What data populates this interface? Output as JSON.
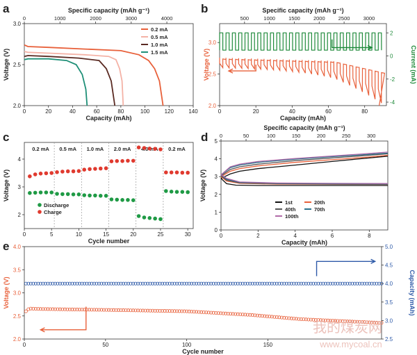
{
  "figure": {
    "panel_letters": [
      "a",
      "b",
      "c",
      "d",
      "e"
    ],
    "watermark": {
      "cn": "我的煤炭网",
      "url": "www.mycoal.cn"
    }
  },
  "chart_data": [
    {
      "panel": "a",
      "type": "line",
      "xlabel": "Capacity (mAh)",
      "ylabel": "Voltage (V)",
      "top_xlabel": "Specific capacity (mAh g⁻¹)",
      "xlim": [
        0,
        140
      ],
      "ylim": [
        2.0,
        3.0
      ],
      "xticks": [
        0,
        20,
        40,
        60,
        80,
        100,
        120,
        140
      ],
      "yticks": [
        2.0,
        2.5,
        3.0
      ],
      "top_xticks": [
        0,
        1000,
        2000,
        3000,
        4000
      ],
      "top_xlim": [
        0,
        4740
      ],
      "legend_position": "top-right",
      "series": [
        {
          "name": "0.2 mA",
          "color": "#e8603a",
          "points": [
            [
              0,
              2.74
            ],
            [
              3,
              2.72
            ],
            [
              20,
              2.71
            ],
            [
              50,
              2.69
            ],
            [
              80,
              2.67
            ],
            [
              95,
              2.62
            ],
            [
              103,
              2.55
            ],
            [
              108,
              2.45
            ],
            [
              112,
              2.3
            ],
            [
              115,
              2.0
            ]
          ]
        },
        {
          "name": "0.5 mA",
          "color": "#f4b2a6",
          "points": [
            [
              0,
              2.66
            ],
            [
              3,
              2.65
            ],
            [
              20,
              2.64
            ],
            [
              50,
              2.62
            ],
            [
              70,
              2.6
            ],
            [
              76,
              2.56
            ],
            [
              79,
              2.45
            ],
            [
              81,
              2.3
            ],
            [
              82,
              2.0
            ]
          ]
        },
        {
          "name": "1.0 mA",
          "color": "#5a2a22",
          "points": [
            [
              0,
              2.6
            ],
            [
              3,
              2.61
            ],
            [
              20,
              2.6
            ],
            [
              45,
              2.58
            ],
            [
              62,
              2.55
            ],
            [
              68,
              2.45
            ],
            [
              72,
              2.3
            ],
            [
              75,
              2.0
            ]
          ]
        },
        {
          "name": "1.5 mA",
          "color": "#1e8f77",
          "points": [
            [
              0,
              2.56
            ],
            [
              3,
              2.57
            ],
            [
              20,
              2.57
            ],
            [
              35,
              2.55
            ],
            [
              43,
              2.5
            ],
            [
              48,
              2.38
            ],
            [
              51,
              2.2
            ],
            [
              52,
              2.0
            ]
          ]
        }
      ]
    },
    {
      "panel": "b",
      "type": "line",
      "xlabel": "Capacity (mAh)",
      "ylabel": "Voltage (V)",
      "y2label": "Current (mA)",
      "top_xlabel": "Specific capacity (mAh g⁻¹)",
      "xlim": [
        0,
        92
      ],
      "ylim": [
        2.0,
        3.3
      ],
      "y2lim": [
        -4.3,
        2.8
      ],
      "xticks": [
        0,
        20,
        40,
        60,
        80
      ],
      "yticks": [
        2.0,
        2.5,
        3.0
      ],
      "y2ticks": [
        -4,
        -2,
        0,
        2
      ],
      "top_xticks": [
        500,
        1000,
        1500,
        2000,
        2500,
        3000
      ],
      "top_xlim": [
        0,
        3350
      ],
      "pulse_period_mAh": 3.5,
      "current_levels_mA": [
        0.5,
        2.0
      ],
      "voltage_series": {
        "color": "#e8603a",
        "start_V": 2.76,
        "end_V": 2.0,
        "end_capacity": 88
      },
      "current_series": {
        "color": "#1f8a3a",
        "end_capacity": 88
      }
    },
    {
      "panel": "c",
      "type": "scatter",
      "xlabel": "Cycle number",
      "ylabel": "Voltage (V)",
      "xlim": [
        0,
        31
      ],
      "ylim": [
        1.5,
        4.6
      ],
      "xticks": [
        0,
        5,
        10,
        15,
        20,
        25,
        30
      ],
      "yticks": [
        2,
        3,
        4
      ],
      "legend_position": "bottom-left",
      "segment_labels": [
        "0.2 mA",
        "0.5 mA",
        "1.0 mA",
        "2.0 mA",
        "4.0 mA",
        "0.2 mA"
      ],
      "segment_boundaries": [
        5.5,
        10.5,
        15.5,
        20.5,
        25.5
      ],
      "series": [
        {
          "name": "Charge",
          "color": "#e03a2f",
          "x": [
            1,
            2,
            3,
            4,
            5,
            6,
            7,
            8,
            9,
            10,
            11,
            12,
            13,
            14,
            15,
            16,
            17,
            18,
            19,
            20,
            21,
            22,
            23,
            24,
            25,
            26,
            27,
            28,
            29,
            30
          ],
          "y": [
            3.38,
            3.45,
            3.48,
            3.49,
            3.5,
            3.53,
            3.55,
            3.56,
            3.56,
            3.57,
            3.62,
            3.64,
            3.65,
            3.66,
            3.67,
            3.92,
            3.93,
            3.93,
            3.94,
            3.94,
            4.42,
            4.4,
            4.38,
            4.37,
            4.35,
            3.52,
            3.52,
            3.52,
            3.51,
            3.51
          ]
        },
        {
          "name": "Discharge",
          "color": "#1f9a45",
          "x": [
            1,
            2,
            3,
            4,
            5,
            6,
            7,
            8,
            9,
            10,
            11,
            12,
            13,
            14,
            15,
            16,
            17,
            18,
            19,
            20,
            21,
            22,
            23,
            24,
            25,
            26,
            27,
            28,
            29,
            30
          ],
          "y": [
            2.78,
            2.79,
            2.8,
            2.8,
            2.8,
            2.75,
            2.74,
            2.74,
            2.73,
            2.73,
            2.7,
            2.69,
            2.69,
            2.68,
            2.68,
            2.55,
            2.54,
            2.53,
            2.53,
            2.52,
            1.95,
            1.9,
            1.88,
            1.86,
            1.84,
            2.85,
            2.83,
            2.82,
            2.82,
            2.81
          ]
        }
      ]
    },
    {
      "panel": "d",
      "type": "line",
      "xlabel": "Capacity (mAh)",
      "ylabel": "Voltage (V)",
      "top_xlabel": "Specific capacity (mAh g⁻¹)",
      "xlim": [
        0,
        9
      ],
      "ylim": [
        0,
        5
      ],
      "xticks": [
        0,
        2,
        4,
        6,
        8
      ],
      "yticks": [
        0,
        1,
        2,
        3,
        4,
        5
      ],
      "top_xticks": [
        0,
        50,
        100,
        150,
        200,
        250,
        300
      ],
      "top_xlim": [
        0,
        333
      ],
      "legend_position": "bottom-center",
      "series": [
        {
          "name": "1st",
          "color": "#111111",
          "charge": [
            [
              0,
              2.9
            ],
            [
              0.5,
              3.15
            ],
            [
              1,
              3.3
            ],
            [
              2,
              3.45
            ],
            [
              4,
              3.65
            ],
            [
              6,
              3.85
            ],
            [
              8,
              4.05
            ],
            [
              9,
              4.15
            ]
          ],
          "discharge": [
            [
              0,
              2.9
            ],
            [
              0.3,
              2.6
            ],
            [
              0.8,
              2.52
            ],
            [
              2,
              2.5
            ],
            [
              5,
              2.5
            ],
            [
              9,
              2.5
            ]
          ]
        },
        {
          "name": "20th",
          "color": "#e8603a",
          "charge": [
            [
              0,
              3.0
            ],
            [
              0.5,
              3.3
            ],
            [
              1,
              3.45
            ],
            [
              2,
              3.6
            ],
            [
              4,
              3.8
            ],
            [
              6,
              3.95
            ],
            [
              8,
              4.1
            ],
            [
              9,
              4.2
            ]
          ],
          "discharge": [
            [
              0,
              3.0
            ],
            [
              0.3,
              2.75
            ],
            [
              1,
              2.62
            ],
            [
              3,
              2.58
            ],
            [
              6,
              2.57
            ],
            [
              9,
              2.56
            ]
          ]
        },
        {
          "name": "40th",
          "color": "#555555",
          "charge": [
            [
              0,
              3.05
            ],
            [
              0.5,
              3.4
            ],
            [
              1,
              3.55
            ],
            [
              2,
              3.7
            ],
            [
              4,
              3.9
            ],
            [
              6,
              4.05
            ],
            [
              8,
              4.2
            ],
            [
              9,
              4.28
            ]
          ],
          "discharge": [
            [
              0,
              3.05
            ],
            [
              0.3,
              2.8
            ],
            [
              1,
              2.65
            ],
            [
              3,
              2.6
            ],
            [
              6,
              2.58
            ],
            [
              9,
              2.57
            ]
          ]
        },
        {
          "name": "70th",
          "color": "#2a6f8a",
          "charge": [
            [
              0,
              3.1
            ],
            [
              0.5,
              3.5
            ],
            [
              1,
              3.65
            ],
            [
              2,
              3.8
            ],
            [
              4,
              3.98
            ],
            [
              6,
              4.12
            ],
            [
              8,
              4.25
            ],
            [
              9,
              4.32
            ]
          ],
          "discharge": [
            [
              0,
              3.1
            ],
            [
              0.3,
              2.85
            ],
            [
              1,
              2.68
            ],
            [
              3,
              2.62
            ],
            [
              6,
              2.6
            ],
            [
              9,
              2.59
            ]
          ]
        },
        {
          "name": "100th",
          "color": "#b06aa8",
          "charge": [
            [
              0,
              3.1
            ],
            [
              0.5,
              3.55
            ],
            [
              1,
              3.7
            ],
            [
              2,
              3.85
            ],
            [
              4,
              4.02
            ],
            [
              6,
              4.16
            ],
            [
              8,
              4.3
            ],
            [
              9,
              4.38
            ]
          ],
          "discharge": [
            [
              0,
              3.1
            ],
            [
              0.3,
              2.9
            ],
            [
              1,
              2.7
            ],
            [
              3,
              2.64
            ],
            [
              6,
              2.62
            ],
            [
              9,
              2.61
            ]
          ]
        }
      ]
    },
    {
      "panel": "e",
      "type": "scatter",
      "xlabel": "Cycle number",
      "ylabel": "Voltage (V)",
      "y2label": "Capacity (mAh)",
      "xlim": [
        0,
        220
      ],
      "ylim": [
        2.0,
        4.0
      ],
      "y2lim": [
        2.5,
        5.0
      ],
      "xticks": [
        0,
        50,
        100,
        150
      ],
      "yticks": [
        2.0,
        2.5,
        3.0,
        3.5,
        4.0
      ],
      "y2ticks": [
        2.5,
        3.0,
        3.5,
        4.0,
        4.5,
        5.0
      ],
      "series": [
        {
          "name": "Voltage",
          "axis": "left",
          "color": "#e8603a",
          "points": [
            [
              1,
              2.6
            ],
            [
              3,
              2.66
            ],
            [
              10,
              2.65
            ],
            [
              50,
              2.63
            ],
            [
              100,
              2.6
            ],
            [
              140,
              2.52
            ],
            [
              170,
              2.43
            ],
            [
              200,
              2.38
            ],
            [
              220,
              2.35
            ]
          ]
        },
        {
          "name": "Capacity",
          "axis": "right",
          "color": "#2e5aa8",
          "points": [
            [
              1,
              4.0
            ],
            [
              220,
              4.0
            ]
          ]
        }
      ]
    }
  ]
}
